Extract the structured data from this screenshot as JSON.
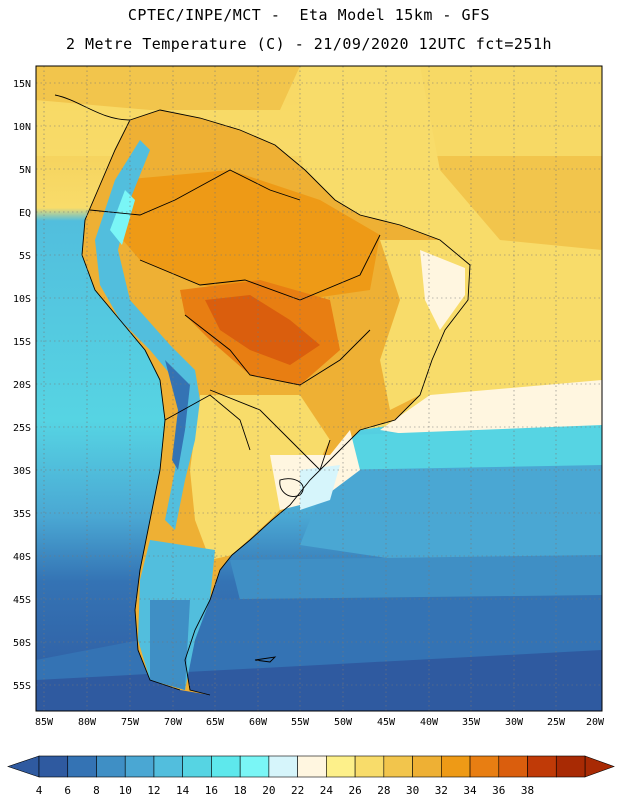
{
  "header": {
    "line1": "CPTEC/INPE/MCT -  Eta Model 15km - GFS",
    "line2": "2 Metre Temperature (C) - 21/09/2020 12UTC fct=251h"
  },
  "map": {
    "lon_labels": [
      "85W",
      "80W",
      "75W",
      "70W",
      "65W",
      "60W",
      "55W",
      "50W",
      "45W",
      "40W",
      "35W",
      "30W",
      "25W",
      "20W"
    ],
    "lat_labels": [
      "15N",
      "10N",
      "5N",
      "EQ",
      "5S",
      "10S",
      "15S",
      "20S",
      "25S",
      "30S",
      "35S",
      "40S",
      "45S",
      "50S",
      "55S"
    ],
    "lon_range": [
      -85.5,
      -19.5
    ],
    "lat_range": [
      17.5,
      -58
    ]
  },
  "colorbar": {
    "labels": [
      "4",
      "6",
      "8",
      "10",
      "12",
      "14",
      "16",
      "18",
      "20",
      "22",
      "24",
      "26",
      "28",
      "30",
      "32",
      "34",
      "36",
      "38"
    ],
    "colors": [
      "#2f5aa0",
      "#3473b4",
      "#3f8fc5",
      "#4aa7d3",
      "#52bedd",
      "#56d4e3",
      "#5ee8ec",
      "#7af6f6",
      "#d6f5fb",
      "#fff6e0",
      "#fdf08a",
      "#f8dc6a",
      "#f2c54c",
      "#eeb034",
      "#ee9a16",
      "#e87e12",
      "#da5e0d",
      "#c03a07",
      "#a82a04"
    ]
  }
}
